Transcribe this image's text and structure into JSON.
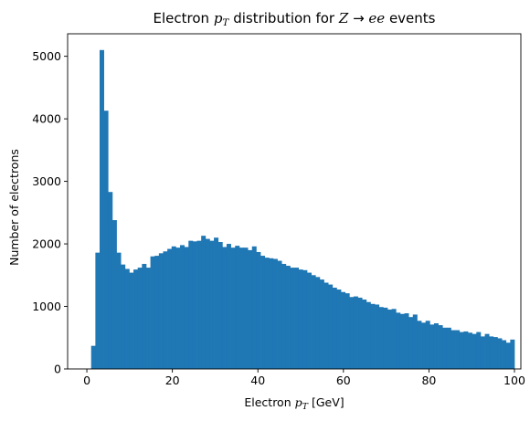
{
  "chart_data": {
    "type": "bar",
    "title": {
      "prefix": "Electron ",
      "p": "p",
      "sub": "T",
      "middle": " distribution for ",
      "Z": "Z",
      "arrow": " → ",
      "ee": "ee",
      "suffix": " events"
    },
    "xlabel": {
      "prefix": "Electron ",
      "p": "p",
      "sub": "T",
      "suffix": " [GeV]"
    },
    "ylabel": "Number of electrons",
    "xlim": [
      -4.5,
      101.5
    ],
    "ylim": [
      0,
      5360
    ],
    "x_ticks": [
      0,
      20,
      40,
      60,
      80,
      100
    ],
    "y_ticks": [
      0,
      1000,
      2000,
      3000,
      4000,
      5000
    ],
    "bin_start": 1.0,
    "bin_width": 0.99,
    "bar_color": "#1f77b4",
    "grid": false,
    "values": [
      370,
      1860,
      5100,
      4130,
      2830,
      2380,
      1860,
      1670,
      1600,
      1540,
      1590,
      1620,
      1680,
      1620,
      1800,
      1810,
      1850,
      1880,
      1920,
      1960,
      1940,
      1980,
      1950,
      2050,
      2040,
      2050,
      2130,
      2080,
      2050,
      2100,
      2030,
      1950,
      2000,
      1940,
      1970,
      1940,
      1940,
      1900,
      1960,
      1870,
      1810,
      1780,
      1770,
      1760,
      1730,
      1680,
      1650,
      1620,
      1620,
      1590,
      1580,
      1540,
      1500,
      1470,
      1430,
      1380,
      1350,
      1300,
      1270,
      1230,
      1210,
      1150,
      1160,
      1140,
      1110,
      1070,
      1040,
      1030,
      990,
      980,
      950,
      960,
      900,
      880,
      890,
      830,
      870,
      770,
      740,
      770,
      710,
      730,
      700,
      660,
      660,
      620,
      620,
      590,
      600,
      580,
      560,
      590,
      520,
      560,
      520,
      510,
      490,
      460,
      420,
      470
    ]
  }
}
